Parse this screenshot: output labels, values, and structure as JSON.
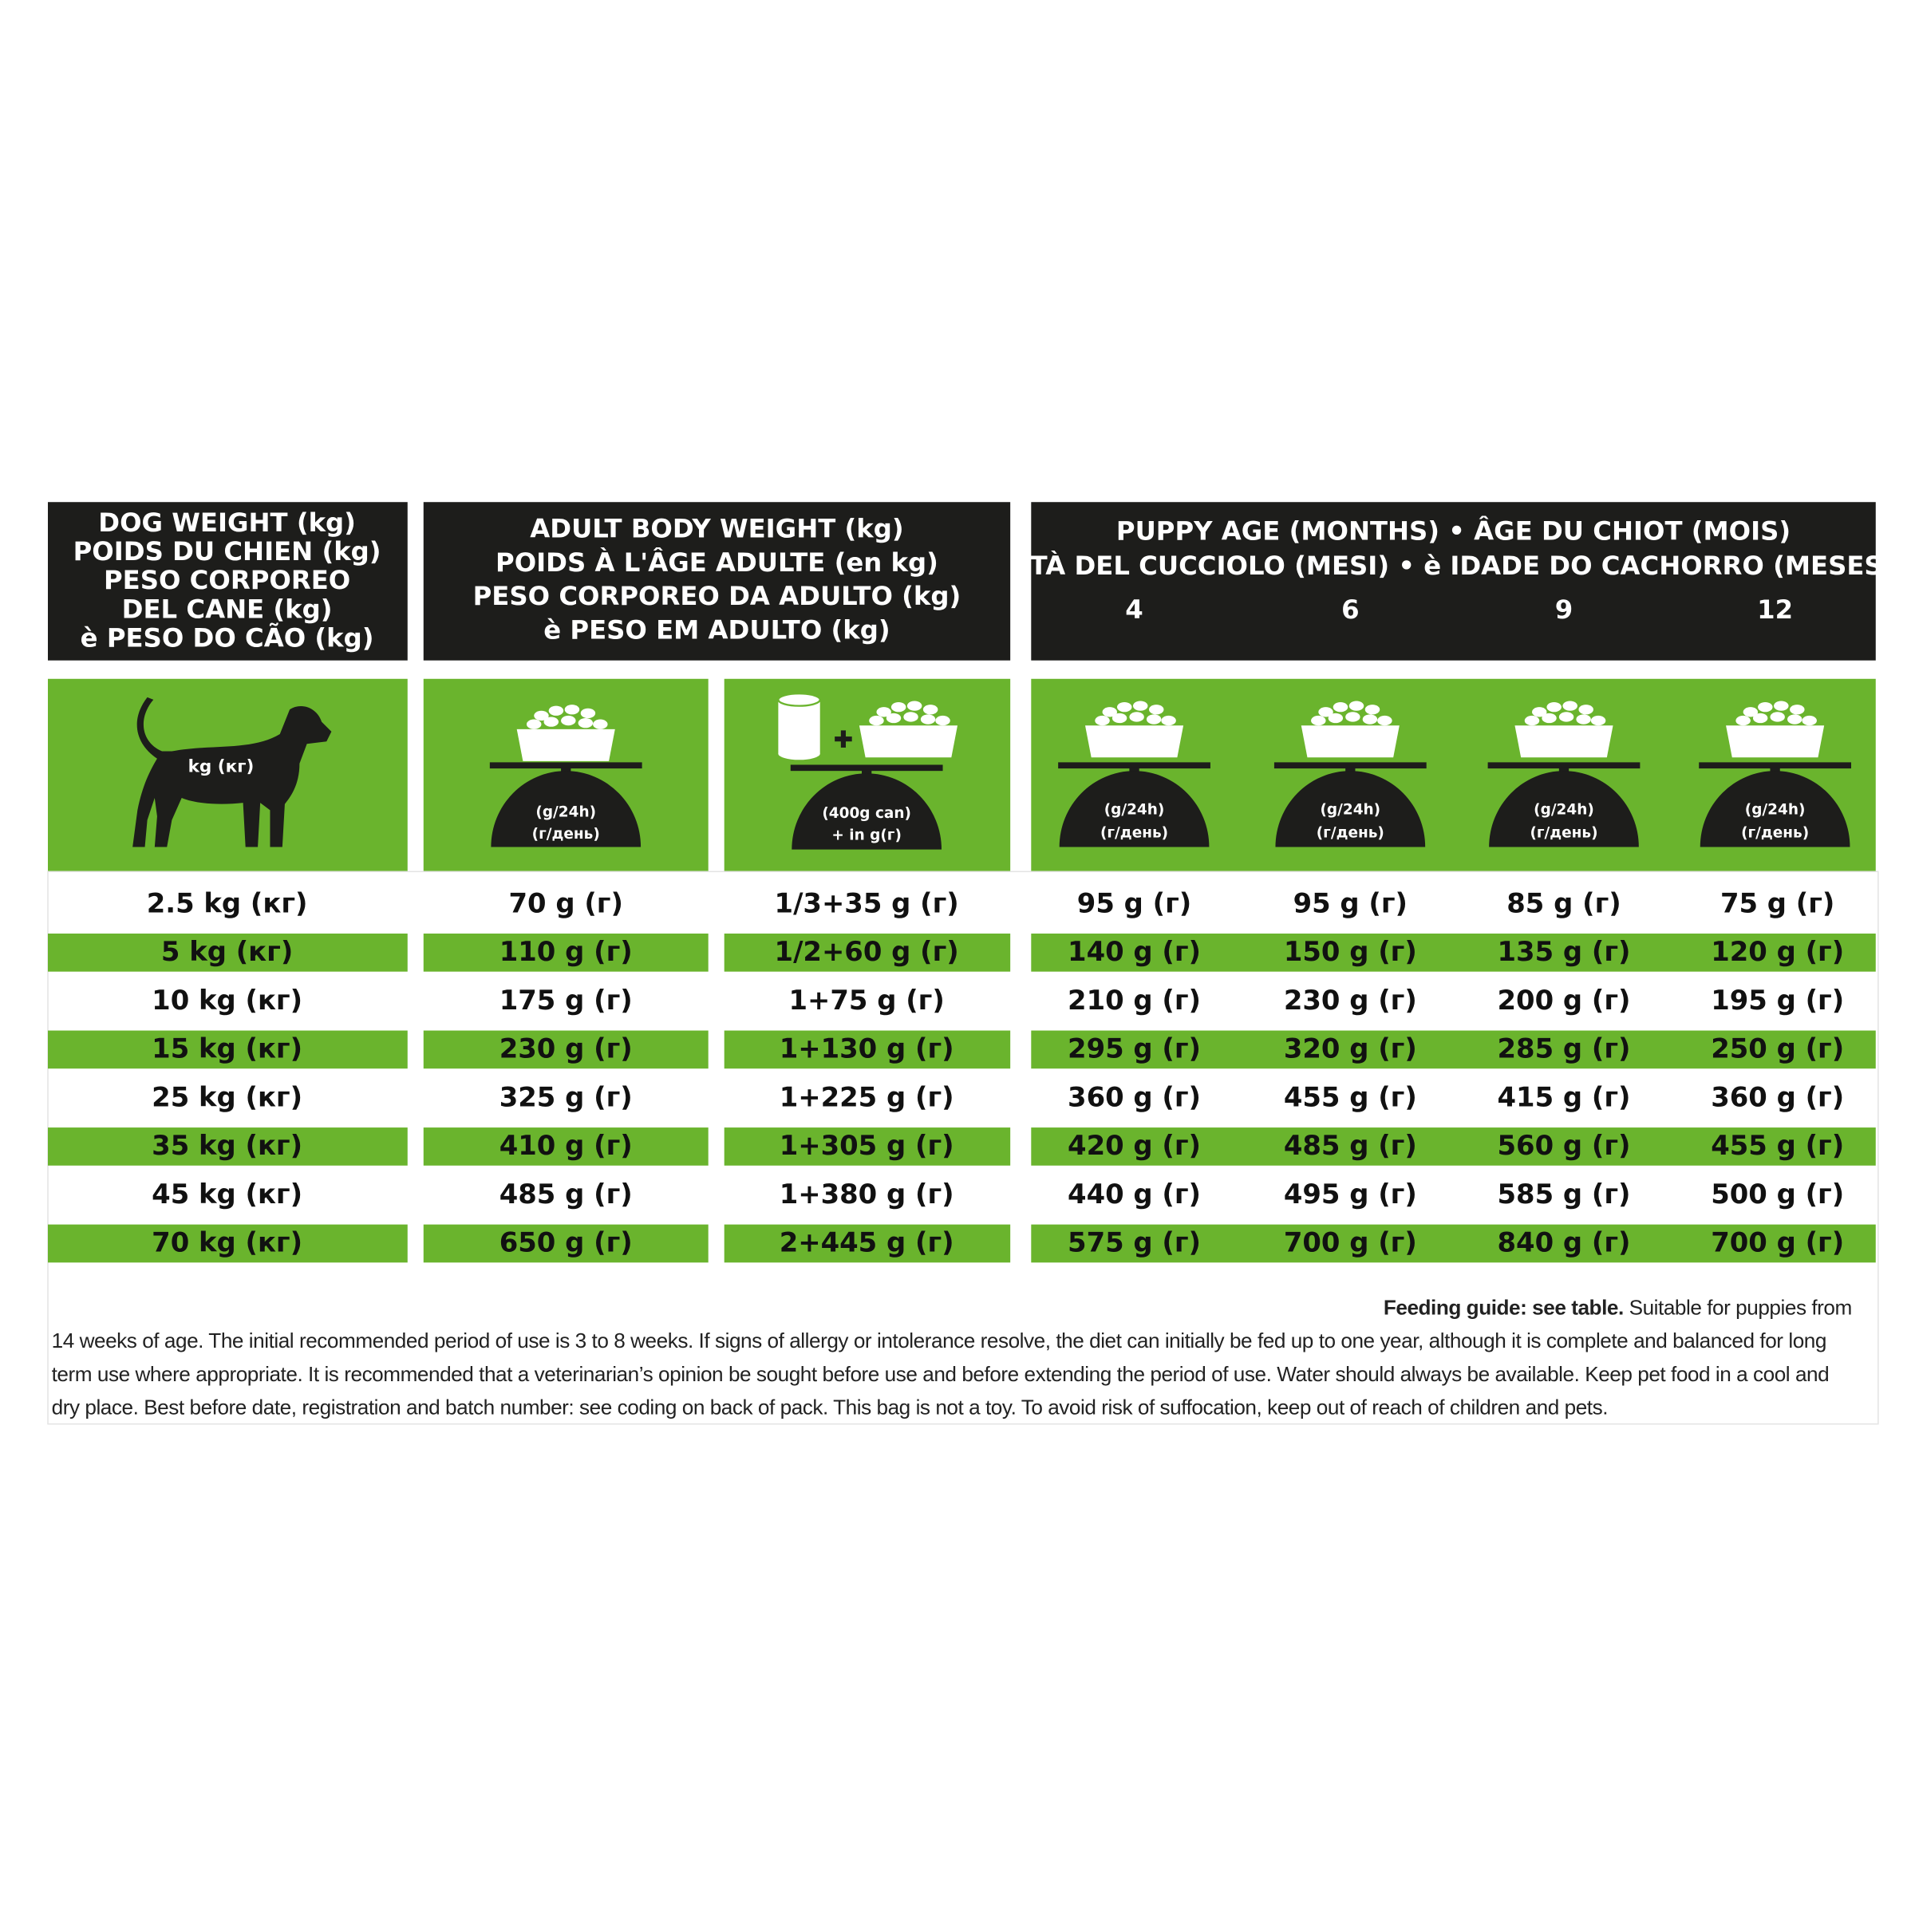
{
  "header": {
    "dog_weight": [
      "DOG WEIGHT (kg)",
      "POIDS DU CHIEN (kg)",
      "PESO CORPOREO",
      "DEL CANE (kg)",
      "è PESO DO CÃO (kg)"
    ],
    "adult_weight": [
      "ADULT BODY WEIGHT (kg)",
      "POIDS À L'ÂGE ADULTE (en kg)",
      "PESO CORPOREO DA ADULTO (kg)",
      "è PESO EM ADULTO (kg)"
    ],
    "puppy_age": [
      "PUPPY AGE (MONTHS) • ÂGE DU CHIOT (MOIS)",
      "ETÀ DEL CUCCIOLO (MESI) • è IDADE DO CACHORRO (MESES)"
    ],
    "ages": [
      "4",
      "6",
      "9",
      "12"
    ]
  },
  "icons": {
    "dog": "kg (кг)",
    "daily": [
      "(g/24h)",
      "(г/день)"
    ],
    "can_mix": [
      "(400g can)",
      "+ in g(г)"
    ]
  },
  "table": {
    "rows": [
      [
        "2.5 kg (кг)",
        "70 g (г)",
        "1/3+35 g (г)",
        "95 g (г)",
        "95 g (г)",
        "85 g (г)",
        "75 g (г)"
      ],
      [
        "5 kg (кг)",
        "110 g (г)",
        "1/2+60 g (г)",
        "140 g (г)",
        "150 g (г)",
        "135 g (г)",
        "120 g (г)"
      ],
      [
        "10 kg (кг)",
        "175 g (г)",
        "1+75 g (г)",
        "210 g (г)",
        "230 g (г)",
        "200 g (г)",
        "195 g (г)"
      ],
      [
        "15 kg (кг)",
        "230 g (г)",
        "1+130 g (г)",
        "295 g (г)",
        "320 g (г)",
        "285 g (г)",
        "250 g (г)"
      ],
      [
        "25 kg (кг)",
        "325 g (г)",
        "1+225 g (г)",
        "360 g (г)",
        "455 g (г)",
        "415 g (г)",
        "360 g (г)"
      ],
      [
        "35 kg (кг)",
        "410 g (г)",
        "1+305 g (г)",
        "420 g (г)",
        "485 g (г)",
        "560 g (г)",
        "455 g (г)"
      ],
      [
        "45 kg (кг)",
        "485 g (г)",
        "1+380 g (г)",
        "440 g (г)",
        "495 g (г)",
        "585 g (г)",
        "500 g (г)"
      ],
      [
        "70 kg (кг)",
        "650 g (г)",
        "2+445 g (г)",
        "575 g (г)",
        "700 g (г)",
        "840 g (г)",
        "700 g (г)"
      ]
    ]
  },
  "footer": {
    "bold": "Feeding guide: see table.",
    "text": "Suitable for puppies from 14 weeks of age. The initial recommended period of use is 3 to 8 weeks. If signs of allergy or intolerance resolve, the diet can initially be fed up to one year, although it is complete and balanced for long term use where appropriate. It is recommended that a veterinarian’s opinion be sought before use and before extending the period of use. Water should always be available. Keep pet food in a cool and dry place. Best before date, registration and batch number: see coding on back of pack. This bag is not a toy. To avoid risk of suffocation, keep out of reach of children and pets."
  }
}
